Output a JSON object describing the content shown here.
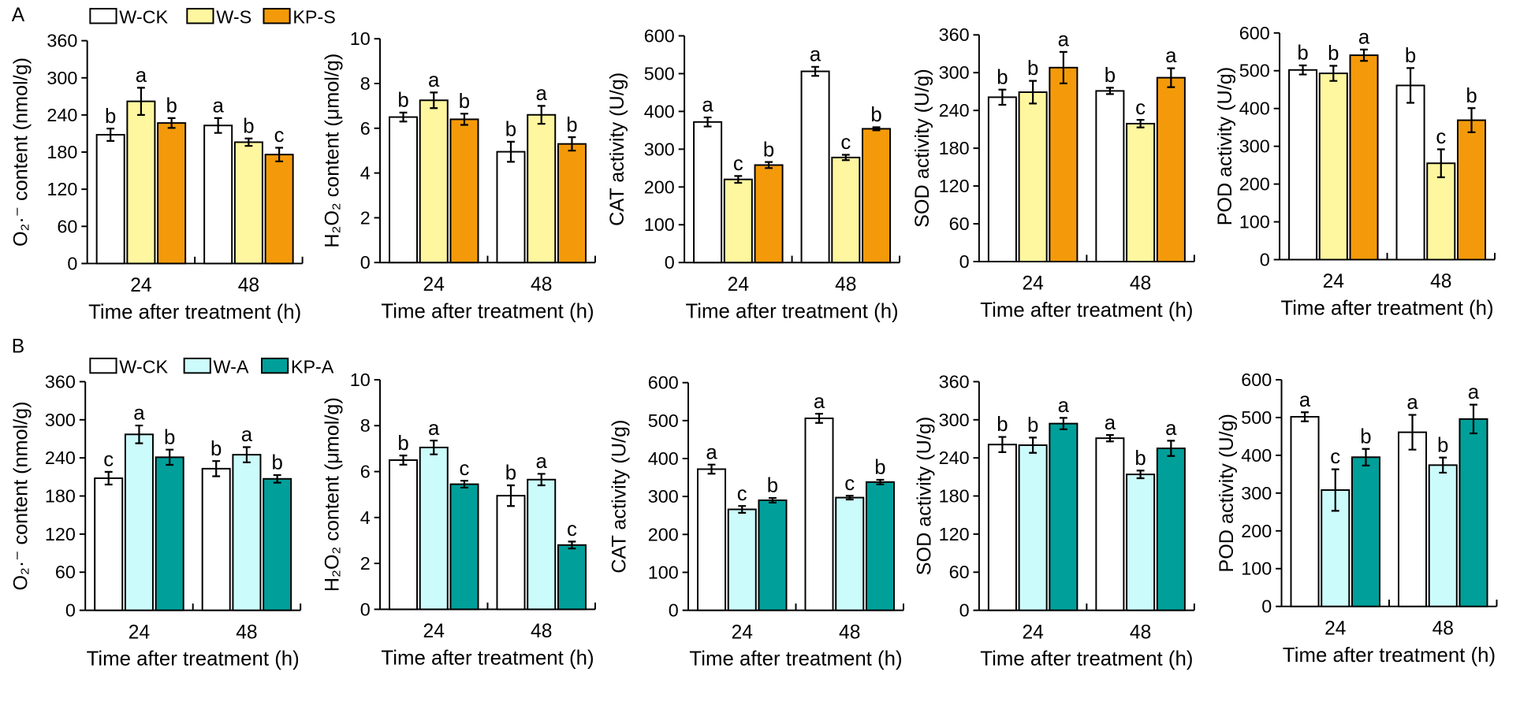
{
  "panel_labels": [
    "A",
    "B"
  ],
  "chart_data": [
    {
      "type": "bar",
      "panel": "A",
      "categories": [
        "24",
        "48"
      ],
      "xlabel": "Time after treatment (h)",
      "ylabel": "O₂·⁻ content (nmol/g)",
      "ylim": [
        0,
        360
      ],
      "yticks": [
        0,
        60,
        120,
        180,
        240,
        300,
        360
      ],
      "series": [
        {
          "name": "W-CK",
          "color": "#ffffff",
          "values": [
            208,
            223
          ],
          "errors": [
            10,
            12
          ],
          "letters": [
            "b",
            "a"
          ]
        },
        {
          "name": "W-S",
          "color": "#fff79f",
          "values": [
            262,
            196
          ],
          "errors": [
            22,
            6
          ],
          "letters": [
            "a",
            "b"
          ]
        },
        {
          "name": "KP-S",
          "color": "#f49a0a",
          "values": [
            227,
            176
          ],
          "errors": [
            8,
            11
          ],
          "letters": [
            "b",
            "c"
          ]
        }
      ]
    },
    {
      "type": "bar",
      "panel": "A",
      "categories": [
        "24",
        "48"
      ],
      "xlabel": "Time after treatment (h)",
      "ylabel": "H₂O₂ content (μmol/g)",
      "ylim": [
        0,
        10
      ],
      "yticks": [
        0,
        2,
        4,
        6,
        8,
        10
      ],
      "series": [
        {
          "name": "W-CK",
          "color": "#ffffff",
          "values": [
            6.5,
            4.95
          ],
          "errors": [
            0.2,
            0.45
          ],
          "letters": [
            "b",
            "b"
          ]
        },
        {
          "name": "W-S",
          "color": "#fff79f",
          "values": [
            7.25,
            6.6
          ],
          "errors": [
            0.35,
            0.4
          ],
          "letters": [
            "a",
            "a"
          ]
        },
        {
          "name": "KP-S",
          "color": "#f49a0a",
          "values": [
            6.4,
            5.3
          ],
          "errors": [
            0.25,
            0.3
          ],
          "letters": [
            "b",
            "b"
          ]
        }
      ]
    },
    {
      "type": "bar",
      "panel": "A",
      "categories": [
        "24",
        "48"
      ],
      "xlabel": "Time after treatment (h)",
      "ylabel": "CAT activity (U/g)",
      "ylim": [
        0,
        600
      ],
      "yticks": [
        0,
        100,
        200,
        300,
        400,
        500,
        600
      ],
      "series": [
        {
          "name": "W-CK",
          "color": "#ffffff",
          "values": [
            372,
            506
          ],
          "errors": [
            12,
            12
          ],
          "letters": [
            "a",
            "a"
          ]
        },
        {
          "name": "W-S",
          "color": "#fff79f",
          "values": [
            220,
            278
          ],
          "errors": [
            9,
            7
          ],
          "letters": [
            "c",
            "c"
          ]
        },
        {
          "name": "KP-S",
          "color": "#f49a0a",
          "values": [
            258,
            354
          ],
          "errors": [
            8,
            4
          ],
          "letters": [
            "b",
            "b"
          ]
        }
      ]
    },
    {
      "type": "bar",
      "panel": "A",
      "categories": [
        "24",
        "48"
      ],
      "xlabel": "Time after treatment (h)",
      "ylabel": "SOD activity (U/g)",
      "ylim": [
        0,
        360
      ],
      "yticks": [
        0,
        60,
        120,
        180,
        240,
        300,
        360
      ],
      "series": [
        {
          "name": "W-CK",
          "color": "#ffffff",
          "values": [
            261,
            271
          ],
          "errors": [
            12,
            5
          ],
          "letters": [
            "b",
            "b"
          ]
        },
        {
          "name": "W-S",
          "color": "#fff79f",
          "values": [
            269,
            219
          ],
          "errors": [
            18,
            6
          ],
          "letters": [
            "b",
            "c"
          ]
        },
        {
          "name": "KP-S",
          "color": "#f49a0a",
          "values": [
            308,
            292
          ],
          "errors": [
            25,
            15
          ],
          "letters": [
            "a",
            "a"
          ]
        }
      ]
    },
    {
      "type": "bar",
      "panel": "A",
      "categories": [
        "24",
        "48"
      ],
      "xlabel": "Time after treatment (h)",
      "ylabel": "POD activity (U/g)",
      "ylim": [
        0,
        600
      ],
      "yticks": [
        0,
        100,
        200,
        300,
        400,
        500,
        600
      ],
      "series": [
        {
          "name": "W-CK",
          "color": "#ffffff",
          "values": [
            502,
            461
          ],
          "errors": [
            12,
            46
          ],
          "letters": [
            "b",
            "b"
          ]
        },
        {
          "name": "W-S",
          "color": "#fff79f",
          "values": [
            493,
            255
          ],
          "errors": [
            20,
            37
          ],
          "letters": [
            "b",
            "c"
          ]
        },
        {
          "name": "KP-S",
          "color": "#f49a0a",
          "values": [
            541,
            369
          ],
          "errors": [
            15,
            32
          ],
          "letters": [
            "a",
            "b"
          ]
        }
      ]
    },
    {
      "type": "bar",
      "panel": "B",
      "categories": [
        "24",
        "48"
      ],
      "xlabel": "Time after treatment (h)",
      "ylabel": "O₂·⁻ content (nmol/g)",
      "ylim": [
        0,
        360
      ],
      "yticks": [
        0,
        60,
        120,
        180,
        240,
        300,
        360
      ],
      "series": [
        {
          "name": "W-CK",
          "color": "#ffffff",
          "values": [
            208,
            223
          ],
          "errors": [
            10,
            12
          ],
          "letters": [
            "c",
            "b"
          ]
        },
        {
          "name": "W-A",
          "color": "#ccfbfc",
          "values": [
            277,
            245
          ],
          "errors": [
            14,
            12
          ],
          "letters": [
            "a",
            "a"
          ]
        },
        {
          "name": "KP-A",
          "color": "#009f9a",
          "values": [
            241,
            207
          ],
          "errors": [
            12,
            6
          ],
          "letters": [
            "b",
            "b"
          ]
        }
      ]
    },
    {
      "type": "bar",
      "panel": "B",
      "categories": [
        "24",
        "48"
      ],
      "xlabel": "Time after treatment (h)",
      "ylabel": "H₂O₂ content (μmol/g)",
      "ylim": [
        0,
        10
      ],
      "yticks": [
        0,
        2,
        4,
        6,
        8,
        10
      ],
      "series": [
        {
          "name": "W-CK",
          "color": "#ffffff",
          "values": [
            6.5,
            4.95
          ],
          "errors": [
            0.2,
            0.45
          ],
          "letters": [
            "b",
            "b"
          ]
        },
        {
          "name": "W-A",
          "color": "#ccfbfc",
          "values": [
            7.05,
            5.65
          ],
          "errors": [
            0.3,
            0.25
          ],
          "letters": [
            "a",
            "a"
          ]
        },
        {
          "name": "KP-A",
          "color": "#009f9a",
          "values": [
            5.45,
            2.8
          ],
          "errors": [
            0.15,
            0.15
          ],
          "letters": [
            "c",
            "c"
          ]
        }
      ]
    },
    {
      "type": "bar",
      "panel": "B",
      "categories": [
        "24",
        "48"
      ],
      "xlabel": "Time after treatment (h)",
      "ylabel": "CAT activity (U/g)",
      "ylim": [
        0,
        600
      ],
      "yticks": [
        0,
        100,
        200,
        300,
        400,
        500,
        600
      ],
      "series": [
        {
          "name": "W-CK",
          "color": "#ffffff",
          "values": [
            372,
            506
          ],
          "errors": [
            12,
            12
          ],
          "letters": [
            "a",
            "a"
          ]
        },
        {
          "name": "W-A",
          "color": "#ccfbfc",
          "values": [
            266,
            297
          ],
          "errors": [
            9,
            5
          ],
          "letters": [
            "c",
            "c"
          ]
        },
        {
          "name": "KP-A",
          "color": "#009f9a",
          "values": [
            290,
            338
          ],
          "errors": [
            6,
            6
          ],
          "letters": [
            "b",
            "b"
          ]
        }
      ]
    },
    {
      "type": "bar",
      "panel": "B",
      "categories": [
        "24",
        "48"
      ],
      "xlabel": "Time after treatment (h)",
      "ylabel": "SOD activity (U/g)",
      "ylim": [
        0,
        360
      ],
      "yticks": [
        0,
        60,
        120,
        180,
        240,
        300,
        360
      ],
      "series": [
        {
          "name": "W-CK",
          "color": "#ffffff",
          "values": [
            261,
            271
          ],
          "errors": [
            12,
            5
          ],
          "letters": [
            "b",
            "a"
          ]
        },
        {
          "name": "W-A",
          "color": "#ccfbfc",
          "values": [
            260,
            214
          ],
          "errors": [
            12,
            6
          ],
          "letters": [
            "b",
            "b"
          ]
        },
        {
          "name": "KP-A",
          "color": "#009f9a",
          "values": [
            294,
            255
          ],
          "errors": [
            9,
            12
          ],
          "letters": [
            "a",
            "a"
          ]
        }
      ]
    },
    {
      "type": "bar",
      "panel": "B",
      "categories": [
        "24",
        "48"
      ],
      "xlabel": "Time after treatment (h)",
      "ylabel": "POD activity (U/g)",
      "ylim": [
        0,
        600
      ],
      "yticks": [
        0,
        100,
        200,
        300,
        400,
        500,
        600
      ],
      "series": [
        {
          "name": "W-CK",
          "color": "#ffffff",
          "values": [
            502,
            461
          ],
          "errors": [
            12,
            46
          ],
          "letters": [
            "a",
            "a"
          ]
        },
        {
          "name": "W-A",
          "color": "#ccfbfc",
          "values": [
            308,
            374
          ],
          "errors": [
            55,
            20
          ],
          "letters": [
            "c",
            "b"
          ]
        },
        {
          "name": "KP-A",
          "color": "#009f9a",
          "values": [
            395,
            496
          ],
          "errors": [
            22,
            38
          ],
          "letters": [
            "b",
            "a"
          ]
        }
      ]
    }
  ]
}
